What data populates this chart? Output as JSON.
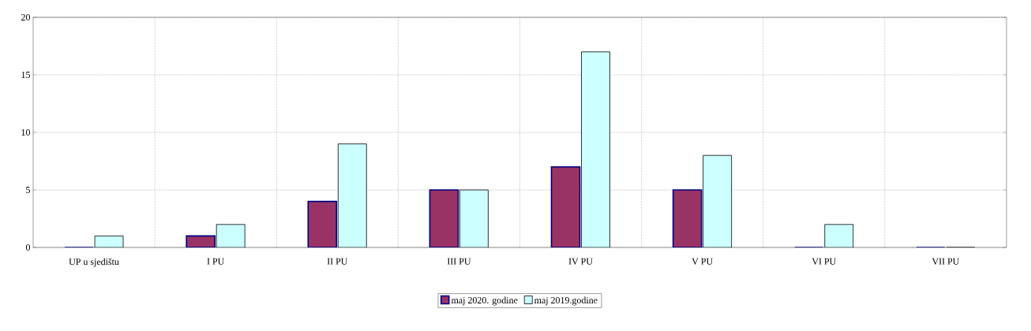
{
  "chart_data": {
    "type": "bar",
    "categories": [
      "UP u sjedištu",
      "I PU",
      "II PU",
      "III PU",
      "IV PU",
      "V PU",
      "VI PU",
      "VII PU"
    ],
    "series": [
      {
        "name": "maj 2020. godine",
        "color": "#993366",
        "values": [
          0,
          1,
          4,
          5,
          7,
          5,
          0,
          0
        ]
      },
      {
        "name": "maj 2019.godine",
        "color": "#ccffff",
        "values": [
          1,
          2,
          9,
          5,
          17,
          8,
          2,
          0
        ]
      }
    ],
    "ylim": [
      0,
      20
    ],
    "yticks": [
      0,
      5,
      10,
      15,
      20
    ],
    "grid": true,
    "legend": "bottom"
  }
}
